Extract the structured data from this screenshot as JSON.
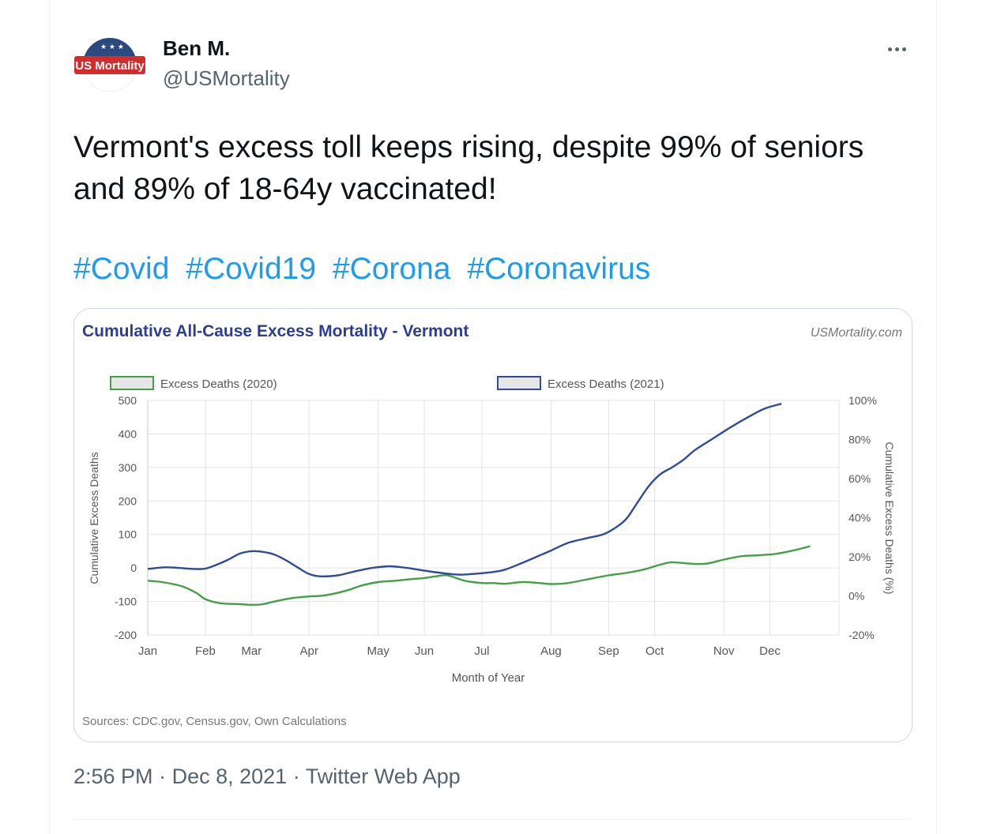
{
  "author": {
    "name": "Ben M.",
    "handle": "@USMortality",
    "avatar_text": "US Mortality"
  },
  "tweet": {
    "text": "Vermont's excess toll keeps rising, despite 99% of seniors and 89% of 18-64y vaccinated!",
    "hashtags": [
      "#Covid",
      "#Covid19",
      "#Corona",
      "#Coronavirus"
    ],
    "time": "2:56 PM",
    "date": "Dec 8, 2021",
    "source": "Twitter Web App",
    "separator": "·",
    "more_icon": "more-horizontal-icon"
  },
  "colors": {
    "link": "#1d9bf0",
    "series_2020": "#43a047",
    "series_2021": "#2f4b9a",
    "chart_title": "#2c3e91"
  },
  "chart_data": {
    "type": "line",
    "title": "Cumulative All-Cause Excess Mortality - Vermont",
    "watermark": "USMortality.com",
    "xlabel": "Month of Year",
    "ylabel": "Cumulative Excess Deaths",
    "y2label": "Cumulative Excess Deaths (%)",
    "source_note": "Sources: CDC.gov, Census.gov, Own Calculations",
    "ylim": [
      -200,
      500
    ],
    "yticks": [
      500,
      400,
      300,
      200,
      100,
      0,
      -100,
      -200
    ],
    "y2lim": [
      -20,
      100
    ],
    "y2ticks": [
      "100%",
      "80%",
      "60%",
      "40%",
      "20%",
      "0%",
      "-20%"
    ],
    "xlim": [
      0,
      12
    ],
    "months": [
      "Jan",
      "Feb",
      "Mar",
      "Apr",
      "May",
      "Jun",
      "Jul",
      "Aug",
      "Sep",
      "Oct",
      "Nov",
      "Dec"
    ],
    "legend_position": "top",
    "grid": true,
    "series": [
      {
        "name": "Excess Deaths (2020)",
        "color": "#43a047",
        "x": [
          0,
          0.25,
          0.6,
          0.85,
          1.0,
          1.25,
          1.6,
          1.8,
          2.0,
          2.2,
          2.5,
          2.8,
          3.0,
          3.2,
          3.5,
          3.7,
          4.0,
          4.3,
          4.6,
          4.8,
          5.0,
          5.2,
          5.5,
          5.8,
          6.0,
          6.2,
          6.5,
          6.8,
          7.0,
          7.3,
          7.6,
          8.0,
          8.3,
          8.6,
          8.9,
          9.1,
          9.4,
          9.7,
          10.0,
          10.3,
          10.6,
          10.9,
          11.2,
          11.5
        ],
        "values": [
          -38,
          -42,
          -55,
          -75,
          -93,
          -105,
          -108,
          -110,
          -108,
          -100,
          -90,
          -85,
          -83,
          -78,
          -65,
          -53,
          -42,
          -38,
          -33,
          -30,
          -25,
          -22,
          -38,
          -45,
          -45,
          -47,
          -42,
          -45,
          -48,
          -45,
          -35,
          -22,
          -15,
          -5,
          10,
          17,
          13,
          13,
          25,
          35,
          38,
          42,
          52,
          65
        ]
      },
      {
        "name": "Excess Deaths (2021)",
        "color": "#2f4b9a",
        "x": [
          0,
          0.3,
          0.55,
          0.8,
          1.0,
          1.2,
          1.4,
          1.6,
          1.8,
          2.0,
          2.2,
          2.4,
          2.6,
          2.8,
          3.0,
          3.3,
          3.6,
          3.9,
          4.2,
          4.5,
          4.8,
          5.1,
          5.4,
          5.7,
          6.0,
          6.2,
          6.5,
          6.8,
          7.0,
          7.3,
          7.6,
          7.9,
          8.1,
          8.3,
          8.5,
          8.7,
          8.9,
          9.1,
          9.3,
          9.5,
          9.8,
          10.1,
          10.4,
          10.7,
          11.0
        ],
        "values": [
          -3,
          2,
          0,
          -3,
          -2,
          10,
          25,
          43,
          50,
          48,
          40,
          23,
          2,
          -18,
          -25,
          -22,
          -10,
          0,
          5,
          0,
          -8,
          -15,
          -20,
          -17,
          -12,
          -5,
          15,
          37,
          52,
          75,
          88,
          100,
          118,
          145,
          195,
          245,
          280,
          300,
          323,
          352,
          385,
          418,
          448,
          475,
          490
        ]
      }
    ]
  }
}
